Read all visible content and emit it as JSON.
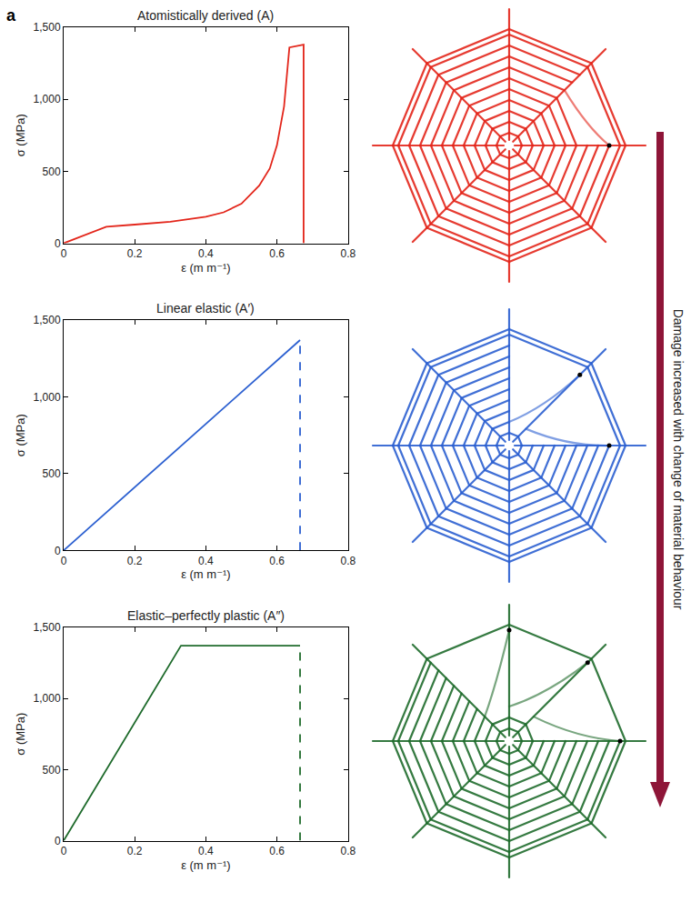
{
  "figure": {
    "panel_label": "a",
    "arrow_label": "Damage increased with change of material behaviour"
  },
  "chart_data": [
    {
      "type": "line",
      "title": "Atomistically derived (A)",
      "x_label": "ε (m m⁻¹)",
      "y_label": "σ (MPa)",
      "xlim": [
        0,
        0.8
      ],
      "xticks": [
        0,
        0.2,
        0.4,
        0.6,
        0.8
      ],
      "ylim": [
        0,
        1500
      ],
      "yticks": [
        0,
        500,
        {
          "value": 1000,
          "label": "1,000"
        },
        {
          "value": 1500,
          "label": "1,500"
        }
      ],
      "grid": false,
      "series": [
        {
          "color": "#e3261b",
          "line_style": "solid",
          "x": [
            0,
            0.12,
            0.2,
            0.3,
            0.4,
            0.45,
            0.5,
            0.55,
            0.58,
            0.6,
            0.62,
            0.635,
            0.675,
            0.675
          ],
          "values": [
            0,
            115,
            130,
            150,
            185,
            215,
            275,
            400,
            520,
            680,
            950,
            1360,
            1380,
            0
          ]
        }
      ]
    },
    {
      "type": "line",
      "title": "Linear elastic (A′)",
      "x_label": "ε (m m⁻¹)",
      "y_label": "σ (MPa)",
      "xlim": [
        0,
        0.8
      ],
      "xticks": [
        0,
        0.2,
        0.4,
        0.6,
        0.8
      ],
      "ylim": [
        0,
        1500
      ],
      "yticks": [
        0,
        500,
        {
          "value": 1000,
          "label": "1,000"
        },
        {
          "value": 1500,
          "label": "1,500"
        }
      ],
      "grid": false,
      "series": [
        {
          "color": "#2b5fd0",
          "line_style": "solid",
          "x": [
            0,
            0.665
          ],
          "values": [
            0,
            1370
          ]
        },
        {
          "color": "#2b5fd0",
          "line_style": "dashed",
          "x": [
            0.665,
            0.665
          ],
          "values": [
            0,
            1370
          ]
        }
      ]
    },
    {
      "type": "line",
      "title": "Elastic–perfectly plastic (A″)",
      "x_label": "ε (m m⁻¹)",
      "y_label": "σ (MPa)",
      "xlim": [
        0,
        0.8
      ],
      "xticks": [
        0,
        0.2,
        0.4,
        0.6,
        0.8
      ],
      "ylim": [
        0,
        1500
      ],
      "yticks": [
        0,
        500,
        {
          "value": 1000,
          "label": "1,000"
        },
        {
          "value": 1500,
          "label": "1,500"
        }
      ],
      "grid": false,
      "series": [
        {
          "color": "#1f6b2c",
          "line_style": "solid",
          "x": [
            0,
            0.33,
            0.665
          ],
          "values": [
            0,
            1370,
            1370
          ]
        },
        {
          "color": "#1f6b2c",
          "line_style": "dashed",
          "x": [
            0.665,
            0.665
          ],
          "values": [
            0,
            1370
          ]
        }
      ]
    }
  ]
}
